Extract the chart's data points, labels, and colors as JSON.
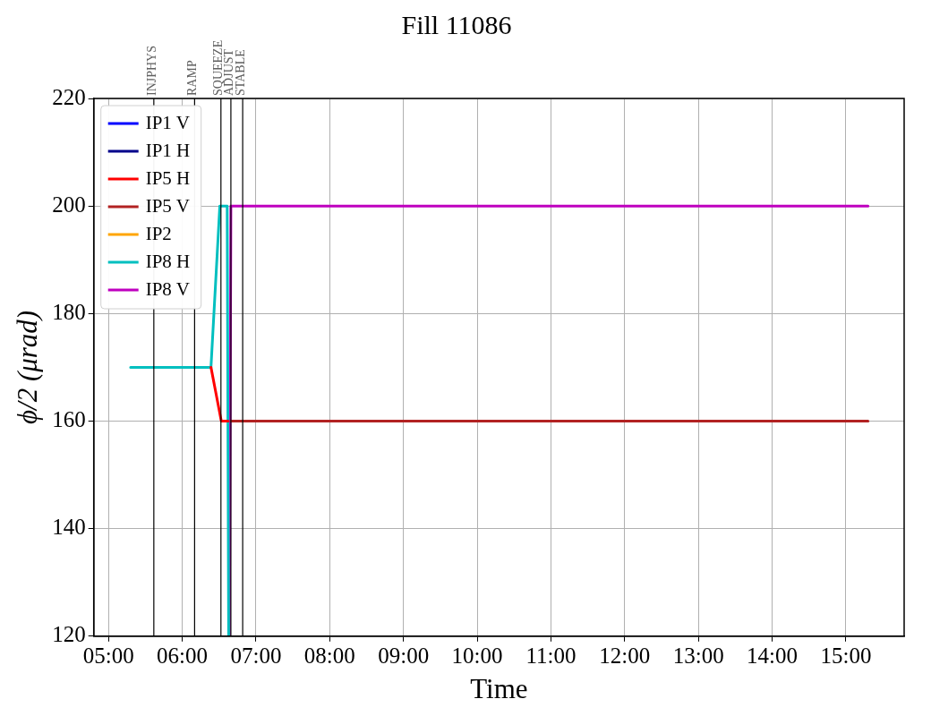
{
  "chart_data": {
    "type": "line",
    "title": "Fill 11086",
    "xlabel": "Time",
    "ylabel": "ϕ/2 (μrad)",
    "xlim": [
      4.8,
      15.79
    ],
    "xticks": [
      {
        "value": 5,
        "label": "05:00"
      },
      {
        "value": 6,
        "label": "06:00"
      },
      {
        "value": 7,
        "label": "07:00"
      },
      {
        "value": 8,
        "label": "08:00"
      },
      {
        "value": 9,
        "label": "09:00"
      },
      {
        "value": 10,
        "label": "10:00"
      },
      {
        "value": 11,
        "label": "11:00"
      },
      {
        "value": 12,
        "label": "12:00"
      },
      {
        "value": 13,
        "label": "13:00"
      },
      {
        "value": 14,
        "label": "14:00"
      },
      {
        "value": 15,
        "label": "15:00"
      }
    ],
    "ylim": [
      120,
      220
    ],
    "yticks": [
      120,
      140,
      160,
      180,
      200,
      220
    ],
    "grid": true,
    "legend": "top left",
    "marker": "none",
    "line_style": "solid",
    "series": [
      {
        "name": "IP1 V",
        "color": "#0000ff"
      },
      {
        "name": "IP1 H",
        "color": "#00008b"
      },
      {
        "name": "IP5 H",
        "color": "#ff0000",
        "x": [
          6.39,
          6.53,
          6.62
        ],
        "values": [
          170,
          160,
          160
        ]
      },
      {
        "name": "IP5 V",
        "color": "#b22222",
        "x": [
          6.66,
          15.3
        ],
        "values": [
          160,
          160
        ]
      },
      {
        "name": "IP2",
        "color": "#ffa500"
      },
      {
        "name": "IP8 H",
        "color": "#00bfbf",
        "x": [
          5.3,
          6.39,
          6.51,
          6.61,
          6.63
        ],
        "values": [
          170,
          170,
          200,
          200,
          120
        ]
      },
      {
        "name": "IP8 V",
        "color": "#bf00bf",
        "x": [
          6.64,
          6.66,
          15.3
        ],
        "values": [
          120,
          200,
          200
        ]
      }
    ],
    "ref_lines": [
      {
        "axis": "x",
        "value": 5.615,
        "label": "INJPHYS",
        "color": "#000000"
      },
      {
        "axis": "x",
        "value": 6.168,
        "label": "RAMP",
        "color": "#000000"
      },
      {
        "axis": "x",
        "value": 6.525,
        "label": "SQUEEZE",
        "color": "#000000"
      },
      {
        "axis": "x",
        "value": 6.66,
        "label": "ADJUST",
        "color": "#000000"
      },
      {
        "axis": "x",
        "value": 6.82,
        "label": "STABLE",
        "color": "#000000"
      }
    ]
  }
}
